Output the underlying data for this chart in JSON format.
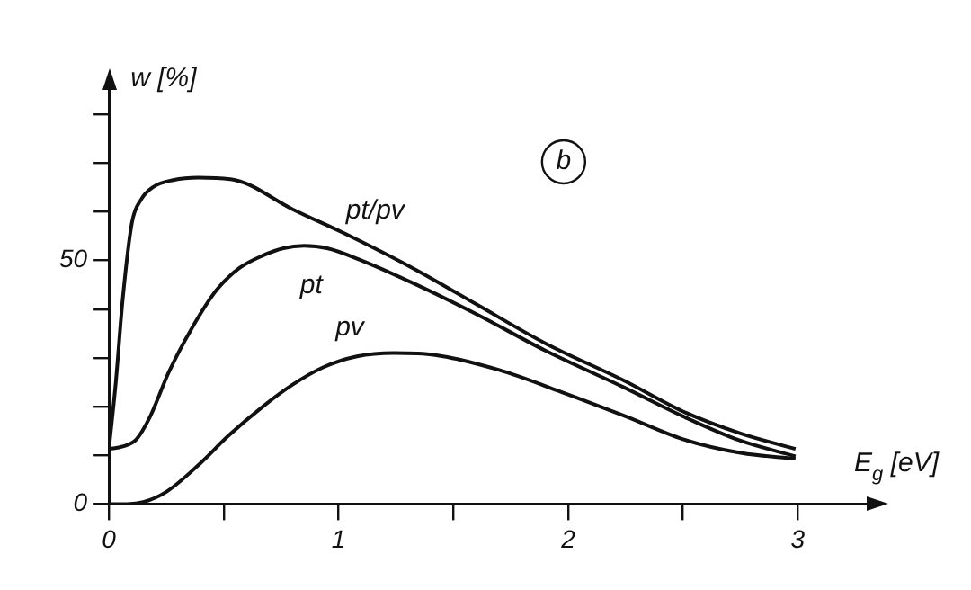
{
  "chart_data": {
    "type": "line",
    "xlabel": "E$_{g}$ [eV]",
    "ylabel": "w [%]",
    "xlim": [
      0,
      3.3
    ],
    "ylim": [
      0,
      85
    ],
    "xticks": [
      0,
      {
        "value": 0.5,
        "label": null
      },
      1,
      {
        "value": 1.5,
        "label": null
      },
      2,
      {
        "value": 2.5,
        "label": null
      },
      3
    ],
    "yticks": [
      0,
      {
        "value": 10,
        "label": null
      },
      {
        "value": 20,
        "label": null
      },
      {
        "value": 30,
        "label": null
      },
      {
        "value": 40,
        "label": null
      },
      50,
      {
        "value": 60,
        "label": null
      },
      {
        "value": 70,
        "label": null
      },
      {
        "value": 80,
        "label": null
      }
    ],
    "grid": false,
    "legend": false,
    "marker": "none",
    "line_style": "solid",
    "annotations": [
      "b"
    ],
    "series": [
      {
        "name": "pt/pv",
        "color": "#111111",
        "x": [
          0,
          0.03,
          0.06,
          0.1,
          0.14,
          0.19,
          0.28,
          0.39,
          0.55,
          0.8,
          1.05,
          1.34,
          1.6,
          1.9,
          2.24,
          2.5,
          2.75,
          2.99
        ],
        "values": [
          11.3,
          25,
          42,
          57.7,
          62.5,
          65,
          66.5,
          67,
          66.5,
          60.5,
          55,
          48,
          41,
          33,
          25.4,
          19,
          14.5,
          11.3
        ]
      },
      {
        "name": "pt",
        "color": "#111111",
        "x": [
          0,
          0.06,
          0.12,
          0.18,
          0.26,
          0.36,
          0.47,
          0.57,
          0.67,
          0.76,
          0.85,
          0.95,
          1.1,
          1.34,
          1.6,
          1.9,
          2.24,
          2.5,
          2.75,
          2.99
        ],
        "values": [
          11.3,
          11.8,
          13.3,
          18,
          27,
          36,
          44,
          48.5,
          51,
          52.5,
          53,
          52.5,
          50,
          45,
          39,
          31.5,
          24,
          18,
          13,
          9.8
        ]
      },
      {
        "name": "pv",
        "color": "#111111",
        "x": [
          0,
          0.08,
          0.15,
          0.25,
          0.39,
          0.52,
          0.67,
          0.8,
          0.93,
          1.08,
          1.24,
          1.42,
          1.7,
          1.97,
          2.25,
          2.5,
          2.75,
          2.99
        ],
        "values": [
          0,
          0,
          0.4,
          2.5,
          8,
          14,
          20,
          24.5,
          28,
          30.3,
          31,
          30.6,
          27.5,
          23,
          18,
          13.3,
          10.5,
          9.3
        ]
      }
    ]
  }
}
